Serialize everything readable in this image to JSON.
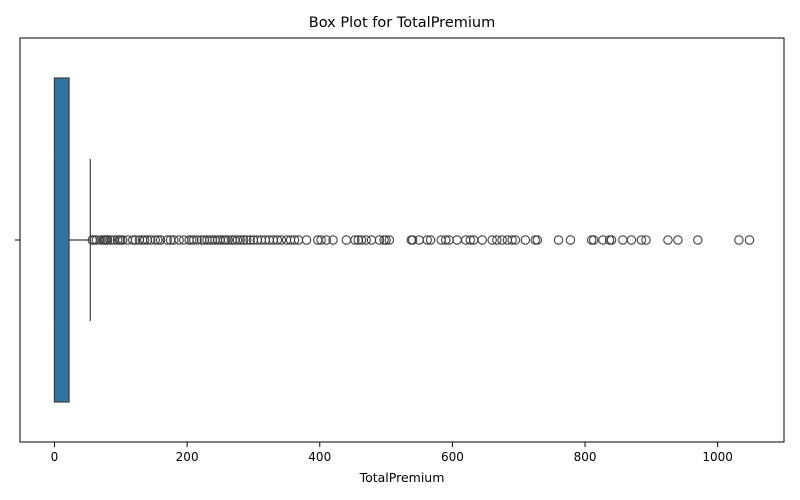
{
  "chart_data": {
    "type": "box",
    "title": "Box Plot for TotalPremium",
    "xlabel": "TotalPremium",
    "ylabel": "",
    "xlim": [
      -52,
      1100
    ],
    "xticks": [
      0,
      200,
      400,
      600,
      800,
      1000
    ],
    "xtick_labels": [
      "0",
      "200",
      "400",
      "600",
      "800",
      "1000"
    ],
    "grid": false,
    "box": {
      "whisker_low": 0,
      "q1": 0,
      "median": 0,
      "q3": 22,
      "whisker_high": 54,
      "color": "#3274a1",
      "line_color": "#3f3f3f"
    },
    "outliers": [
      57,
      60,
      63,
      70,
      74,
      76,
      78,
      80,
      84,
      90,
      95,
      98,
      100,
      103,
      110,
      118,
      122,
      128,
      133,
      136,
      140,
      145,
      152,
      156,
      160,
      170,
      175,
      180,
      188,
      195,
      203,
      207,
      210,
      215,
      222,
      226,
      230,
      234,
      238,
      242,
      246,
      250,
      255,
      258,
      262,
      268,
      272,
      276,
      280,
      285,
      290,
      295,
      300,
      306,
      312,
      318,
      324,
      330,
      336,
      342,
      350,
      356,
      362,
      368,
      380,
      397,
      402,
      410,
      420,
      440,
      453,
      458,
      463,
      470,
      478,
      490,
      497,
      500,
      505,
      538,
      540,
      550,
      562,
      567,
      583,
      590,
      595,
      607,
      620,
      627,
      632,
      645,
      660,
      667,
      675,
      683,
      690,
      695,
      710,
      725,
      728,
      760,
      778,
      810,
      813,
      827,
      837,
      840,
      857,
      870,
      885,
      892,
      925,
      940,
      970,
      1032,
      1048
    ]
  }
}
